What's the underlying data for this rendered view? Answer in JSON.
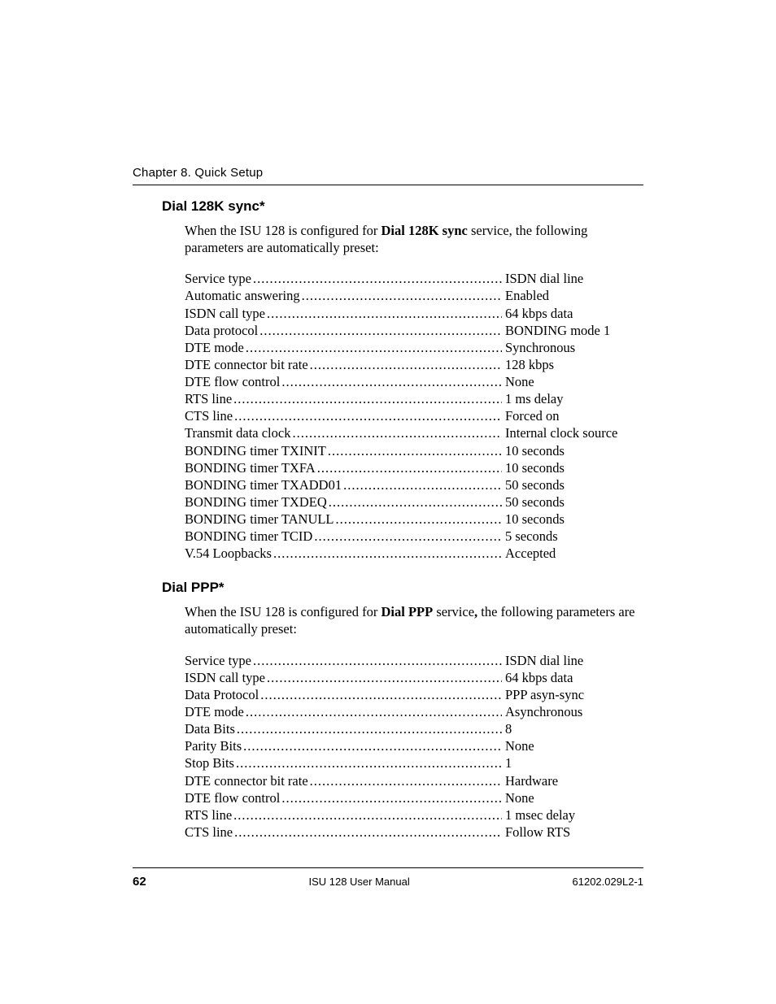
{
  "header": {
    "chapter_label": "Chapter 8. Quick Setup"
  },
  "sections": [
    {
      "title": "Dial 128K sync*",
      "intro_pre": "When the ISU 128 is configured for ",
      "intro_bold": "Dial 128K sync",
      "intro_post": " service, the following parameters are automatically preset:",
      "params": [
        {
          "label": "Service type",
          "value": "ISDN dial line"
        },
        {
          "label": "Automatic answering",
          "value": "Enabled"
        },
        {
          "label": "ISDN call type",
          "value": "64 kbps data"
        },
        {
          "label": "Data protocol",
          "value": "BONDING mode 1"
        },
        {
          "label": "DTE mode",
          "value": "Synchronous"
        },
        {
          "label": "DTE connector bit rate",
          "value": "128 kbps"
        },
        {
          "label": "DTE flow control",
          "value": " None"
        },
        {
          "label": "RTS line",
          "value": "1 ms delay"
        },
        {
          "label": "CTS line",
          "value": "Forced on"
        },
        {
          "label": "Transmit data clock",
          "value": "Internal clock source"
        },
        {
          "label": "BONDING timer TXINIT",
          "value": "10 seconds"
        },
        {
          "label": "BONDING timer TXFA",
          "value": "10 seconds"
        },
        {
          "label": "BONDING timer TXADD01",
          "value": "50 seconds"
        },
        {
          "label": "BONDING timer TXDEQ",
          "value": "50 seconds"
        },
        {
          "label": "BONDING timer TANULL",
          "value": "10 seconds"
        },
        {
          "label": "BONDING timer TCID",
          "value": "5 seconds"
        },
        {
          "label": "V.54 Loopbacks",
          "value": "Accepted"
        }
      ]
    },
    {
      "title": "Dial PPP*",
      "intro_pre": "When the ISU 128 is configured for ",
      "intro_bold": "Dial PPP",
      "intro_post_pre_comma": " service",
      "intro_post_bold_comma": ",",
      "intro_post": " the following parameters are automatically preset:",
      "params": [
        {
          "label": "Service type",
          "value": "ISDN dial line"
        },
        {
          "label": "ISDN call type",
          "value": "64 kbps data"
        },
        {
          "label": "Data Protocol",
          "value": "PPP asyn-sync"
        },
        {
          "label": "DTE mode",
          "value": "Asynchronous"
        },
        {
          "label": "Data Bits",
          "value": "8"
        },
        {
          "label": "Parity Bits",
          "value": "None"
        },
        {
          "label": "Stop Bits",
          "value": "1"
        },
        {
          "label": "DTE connector bit rate",
          "value": "Hardware"
        },
        {
          "label": "DTE flow control",
          "value": "None"
        },
        {
          "label": "RTS line",
          "value": "1 msec delay"
        },
        {
          "label": "CTS line",
          "value": "Follow RTS"
        }
      ]
    }
  ],
  "footer": {
    "page_number": "62",
    "center_text": "ISU 128 User Manual",
    "right_text": "61202.029L2-1"
  }
}
